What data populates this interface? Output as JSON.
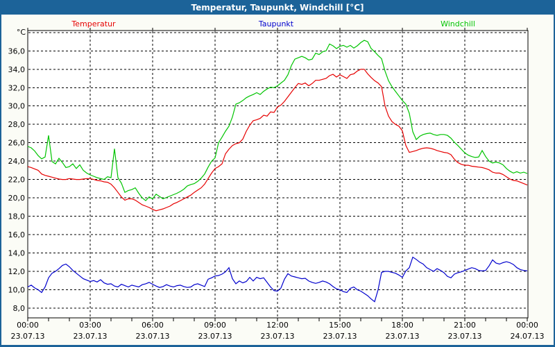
{
  "window": {
    "title": "Temperatur, Taupunkt, Windchill [°C]",
    "titlebar_color": "#1c6399",
    "background_color": "#fbfcf6"
  },
  "chart_data": {
    "type": "line",
    "title": "Temperatur, Taupunkt, Windchill [°C]",
    "unit_label": "°C",
    "grid": "dashed",
    "legend_position": "top",
    "x_axis": {
      "ticks": [
        {
          "time": "00:00",
          "date": "23.07.13",
          "hour": 0
        },
        {
          "time": "03:00",
          "date": "23.07.13",
          "hour": 3
        },
        {
          "time": "06:00",
          "date": "23.07.13",
          "hour": 6
        },
        {
          "time": "09:00",
          "date": "23.07.13",
          "hour": 9
        },
        {
          "time": "12:00",
          "date": "23.07.13",
          "hour": 12
        },
        {
          "time": "15:00",
          "date": "23.07.13",
          "hour": 15
        },
        {
          "time": "18:00",
          "date": "23.07.13",
          "hour": 18
        },
        {
          "time": "21:00",
          "date": "23.07.13",
          "hour": 21
        },
        {
          "time": "00:00",
          "date": "24.07.13",
          "hour": 24
        }
      ],
      "minor_tick_every_hours": 1,
      "range_hours": [
        0,
        24
      ]
    },
    "y_axis": {
      "tick_values": [
        36,
        34,
        32,
        30,
        28,
        26,
        24,
        22,
        20,
        18,
        16,
        14,
        12,
        10,
        8
      ],
      "tick_labels": [
        "36,0",
        "34,0",
        "32,0",
        "30,0",
        "28,0",
        "26,0",
        "24,0",
        "22,0",
        "20,0",
        "18,0",
        "16,0",
        "14,0",
        "12,0",
        "10,0",
        "8,0"
      ],
      "grid_values": [
        38,
        36,
        34,
        32,
        30,
        28,
        26,
        24,
        22,
        20,
        18,
        16,
        14,
        12,
        10,
        8
      ],
      "ylim": [
        6.9,
        38.2
      ]
    },
    "series": [
      {
        "name": "Temperatur",
        "color": "#e60000",
        "start_hour": 0,
        "step_minutes": 10,
        "values": [
          23.4,
          23.3,
          23.15,
          23.0,
          22.6,
          22.45,
          22.35,
          22.25,
          22.15,
          22.05,
          22.0,
          22.0,
          22.1,
          22.05,
          22.0,
          22.0,
          22.05,
          22.1,
          22.1,
          22.0,
          21.9,
          21.85,
          21.75,
          21.7,
          21.5,
          21.1,
          20.6,
          20.1,
          19.75,
          19.9,
          19.9,
          19.75,
          19.5,
          19.25,
          19.1,
          18.95,
          18.75,
          18.6,
          18.7,
          18.8,
          18.95,
          19.1,
          19.35,
          19.5,
          19.7,
          19.9,
          20.1,
          20.3,
          20.6,
          20.85,
          21.1,
          21.5,
          22.1,
          22.7,
          23.2,
          23.4,
          23.7,
          24.8,
          25.3,
          25.7,
          25.9,
          26.0,
          26.4,
          27.25,
          27.9,
          28.4,
          28.5,
          28.65,
          29.0,
          28.9,
          29.35,
          29.3,
          29.9,
          30.1,
          30.5,
          31.0,
          31.5,
          32.0,
          32.45,
          32.35,
          32.5,
          32.2,
          32.45,
          32.8,
          32.8,
          32.9,
          33.0,
          33.3,
          33.45,
          33.15,
          33.4,
          33.2,
          33.0,
          33.4,
          33.5,
          33.8,
          34.0,
          34.0,
          33.5,
          33.1,
          32.75,
          32.5,
          32.1,
          30.0,
          28.9,
          28.3,
          28.0,
          27.8,
          27.3,
          25.7,
          24.95,
          25.05,
          25.15,
          25.3,
          25.4,
          25.45,
          25.4,
          25.3,
          25.15,
          25.05,
          24.95,
          24.9,
          24.7,
          24.2,
          23.85,
          23.65,
          23.55,
          23.55,
          23.45,
          23.4,
          23.35,
          23.3,
          23.2,
          23.05,
          22.8,
          22.7,
          22.7,
          22.55,
          22.3,
          22.05,
          21.9,
          21.85,
          21.7,
          21.55,
          21.4
        ]
      },
      {
        "name": "Taupunkt",
        "color": "#0000cd",
        "start_hour": 0,
        "step_minutes": 10,
        "values": [
          10.3,
          10.5,
          10.2,
          10.0,
          9.7,
          10.3,
          11.3,
          11.8,
          12.0,
          12.3,
          12.65,
          12.8,
          12.5,
          12.1,
          11.8,
          11.5,
          11.2,
          11.05,
          10.9,
          11.0,
          10.85,
          11.1,
          10.75,
          10.6,
          10.65,
          10.4,
          10.3,
          10.6,
          10.45,
          10.3,
          10.5,
          10.4,
          10.3,
          10.55,
          10.65,
          10.8,
          10.6,
          10.4,
          10.25,
          10.35,
          10.55,
          10.4,
          10.3,
          10.45,
          10.5,
          10.35,
          10.25,
          10.3,
          10.55,
          10.65,
          10.5,
          10.35,
          11.15,
          11.3,
          11.5,
          11.55,
          11.7,
          11.95,
          12.4,
          11.2,
          10.65,
          10.95,
          10.75,
          10.9,
          11.35,
          10.95,
          11.35,
          11.2,
          11.3,
          10.8,
          10.3,
          9.9,
          9.85,
          10.2,
          11.15,
          11.75,
          11.5,
          11.4,
          11.3,
          11.2,
          11.25,
          10.95,
          10.8,
          10.7,
          10.8,
          10.95,
          10.85,
          10.65,
          10.35,
          10.1,
          10.0,
          9.8,
          9.7,
          10.15,
          10.3,
          10.0,
          9.85,
          9.6,
          9.35,
          9.0,
          8.7,
          10.0,
          11.9,
          12.0,
          12.0,
          11.9,
          11.8,
          11.6,
          11.35,
          12.05,
          12.4,
          13.55,
          13.3,
          13.0,
          12.8,
          12.4,
          12.2,
          12.0,
          12.3,
          12.1,
          11.85,
          11.45,
          11.3,
          11.7,
          11.85,
          11.95,
          12.1,
          12.25,
          12.4,
          12.3,
          12.1,
          12.05,
          12.1,
          12.6,
          13.25,
          12.9,
          12.8,
          12.95,
          13.05,
          12.95,
          12.75,
          12.4,
          12.2,
          12.1,
          12.05
        ]
      },
      {
        "name": "Windchill",
        "color": "#00c400",
        "start_hour": 0,
        "step_minutes": 10,
        "values": [
          25.6,
          25.45,
          25.1,
          24.6,
          24.25,
          24.45,
          26.8,
          23.95,
          23.7,
          24.3,
          23.85,
          23.3,
          23.4,
          23.7,
          23.2,
          23.6,
          23.0,
          22.7,
          22.5,
          22.35,
          22.2,
          22.1,
          22.0,
          22.3,
          22.2,
          25.35,
          22.2,
          21.6,
          20.6,
          20.8,
          20.9,
          21.1,
          20.5,
          20.0,
          19.7,
          20.1,
          19.9,
          20.4,
          20.15,
          19.9,
          20.05,
          20.2,
          20.35,
          20.5,
          20.7,
          20.95,
          21.3,
          21.45,
          21.55,
          21.8,
          22.15,
          22.6,
          23.35,
          24.0,
          24.35,
          26.0,
          26.6,
          27.25,
          27.8,
          28.8,
          30.2,
          30.35,
          30.6,
          30.9,
          31.1,
          31.25,
          31.45,
          31.25,
          31.6,
          31.85,
          32.05,
          32.0,
          32.2,
          32.5,
          32.8,
          33.4,
          34.4,
          35.1,
          35.25,
          35.4,
          35.25,
          35.0,
          35.1,
          35.75,
          35.6,
          35.9,
          36.0,
          36.75,
          36.55,
          36.25,
          36.5,
          36.6,
          36.4,
          36.6,
          36.3,
          36.55,
          36.9,
          37.15,
          37.0,
          36.25,
          35.9,
          35.5,
          35.15,
          33.8,
          32.75,
          32.1,
          31.6,
          31.1,
          30.6,
          30.2,
          29.2,
          27.2,
          26.35,
          26.7,
          26.9,
          27.0,
          27.05,
          26.9,
          26.8,
          26.9,
          26.9,
          26.8,
          26.5,
          26.05,
          25.7,
          25.3,
          24.9,
          24.65,
          24.5,
          24.4,
          24.45,
          25.15,
          24.5,
          24.0,
          23.8,
          23.9,
          23.8,
          23.6,
          23.2,
          22.9,
          22.7,
          22.85,
          22.7,
          22.8,
          22.65
        ]
      }
    ]
  }
}
